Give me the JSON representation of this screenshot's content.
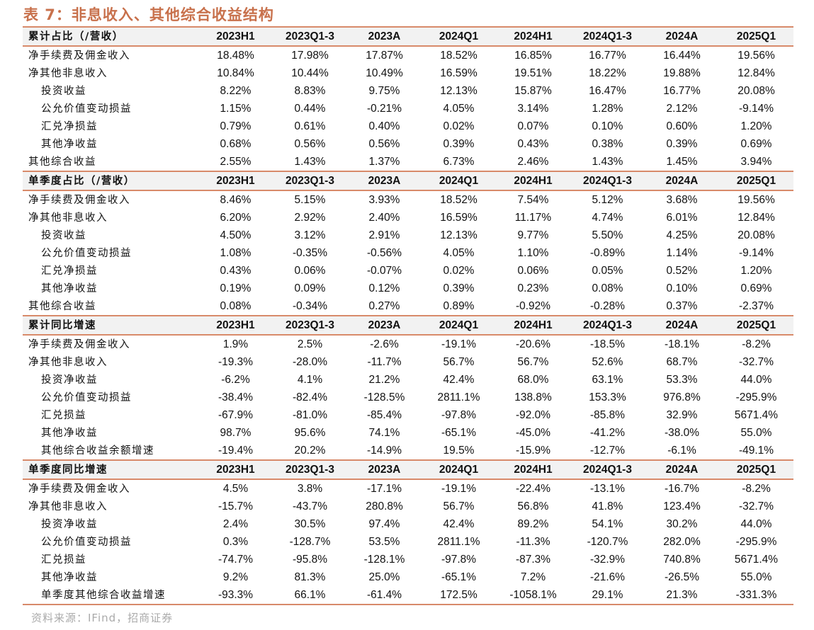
{
  "title": "表 7：非息收入、其他综合收益结构",
  "columns": [
    "2023H1",
    "2023Q1-3",
    "2023A",
    "2024Q1",
    "2024H1",
    "2024Q1-3",
    "2024A",
    "2025Q1"
  ],
  "accent_color": "#c8714c",
  "sections": [
    {
      "header": "累计占比（/营收）",
      "rows": [
        {
          "label": "净手续费及佣金收入",
          "indent": false,
          "values": [
            "18.48%",
            "17.98%",
            "17.87%",
            "18.52%",
            "16.85%",
            "16.77%",
            "16.44%",
            "19.56%"
          ]
        },
        {
          "label": "净其他非息收入",
          "indent": false,
          "values": [
            "10.84%",
            "10.44%",
            "10.49%",
            "16.59%",
            "19.51%",
            "18.22%",
            "19.88%",
            "12.84%"
          ]
        },
        {
          "label": "投资收益",
          "indent": true,
          "values": [
            "8.22%",
            "8.83%",
            "9.75%",
            "12.13%",
            "15.87%",
            "16.47%",
            "16.77%",
            "20.08%"
          ]
        },
        {
          "label": "公允价值变动损益",
          "indent": true,
          "values": [
            "1.15%",
            "0.44%",
            "-0.21%",
            "4.05%",
            "3.14%",
            "1.28%",
            "2.12%",
            "-9.14%"
          ]
        },
        {
          "label": "汇兑净损益",
          "indent": true,
          "values": [
            "0.79%",
            "0.61%",
            "0.40%",
            "0.02%",
            "0.07%",
            "0.10%",
            "0.60%",
            "1.20%"
          ]
        },
        {
          "label": "其他净收益",
          "indent": true,
          "values": [
            "0.68%",
            "0.56%",
            "0.56%",
            "0.39%",
            "0.43%",
            "0.38%",
            "0.39%",
            "0.69%"
          ]
        },
        {
          "label": "其他综合收益",
          "indent": false,
          "values": [
            "2.55%",
            "1.43%",
            "1.37%",
            "6.73%",
            "2.46%",
            "1.43%",
            "1.45%",
            "3.94%"
          ]
        }
      ]
    },
    {
      "header": "单季度占比（/营收）",
      "rows": [
        {
          "label": "净手续费及佣金收入",
          "indent": false,
          "values": [
            "8.46%",
            "5.15%",
            "3.93%",
            "18.52%",
            "7.54%",
            "5.12%",
            "3.68%",
            "19.56%"
          ]
        },
        {
          "label": "净其他非息收入",
          "indent": false,
          "values": [
            "6.20%",
            "2.92%",
            "2.40%",
            "16.59%",
            "11.17%",
            "4.74%",
            "6.01%",
            "12.84%"
          ]
        },
        {
          "label": "投资收益",
          "indent": true,
          "values": [
            "4.50%",
            "3.12%",
            "2.91%",
            "12.13%",
            "9.77%",
            "5.50%",
            "4.25%",
            "20.08%"
          ]
        },
        {
          "label": "公允价值变动损益",
          "indent": true,
          "values": [
            "1.08%",
            "-0.35%",
            "-0.56%",
            "4.05%",
            "1.10%",
            "-0.89%",
            "1.14%",
            "-9.14%"
          ]
        },
        {
          "label": "汇兑净损益",
          "indent": true,
          "values": [
            "0.43%",
            "0.06%",
            "-0.07%",
            "0.02%",
            "0.06%",
            "0.05%",
            "0.52%",
            "1.20%"
          ]
        },
        {
          "label": "其他净收益",
          "indent": true,
          "values": [
            "0.19%",
            "0.09%",
            "0.12%",
            "0.39%",
            "0.23%",
            "0.08%",
            "0.10%",
            "0.69%"
          ]
        },
        {
          "label": "其他综合收益",
          "indent": false,
          "values": [
            "0.08%",
            "-0.34%",
            "0.27%",
            "0.89%",
            "-0.92%",
            "-0.28%",
            "0.37%",
            "-2.37%"
          ]
        }
      ]
    },
    {
      "header": "累计同比增速",
      "rows": [
        {
          "label": "净手续费及佣金收入",
          "indent": false,
          "values": [
            "1.9%",
            "2.5%",
            "-2.6%",
            "-19.1%",
            "-20.6%",
            "-18.5%",
            "-18.1%",
            "-8.2%"
          ]
        },
        {
          "label": "净其他非息收入",
          "indent": false,
          "values": [
            "-19.3%",
            "-28.0%",
            "-11.7%",
            "56.7%",
            "56.7%",
            "52.6%",
            "68.7%",
            "-32.7%"
          ]
        },
        {
          "label": "投资净收益",
          "indent": true,
          "values": [
            "-6.2%",
            "4.1%",
            "21.2%",
            "42.4%",
            "68.0%",
            "63.1%",
            "53.3%",
            "44.0%"
          ]
        },
        {
          "label": "公允价值变动损益",
          "indent": true,
          "values": [
            "-38.4%",
            "-82.4%",
            "-128.5%",
            "2811.1%",
            "138.8%",
            "153.3%",
            "976.8%",
            "-295.9%"
          ]
        },
        {
          "label": "汇兑损益",
          "indent": true,
          "values": [
            "-67.9%",
            "-81.0%",
            "-85.4%",
            "-97.8%",
            "-92.0%",
            "-85.8%",
            "32.9%",
            "5671.4%"
          ]
        },
        {
          "label": "其他净收益",
          "indent": true,
          "values": [
            "98.7%",
            "95.6%",
            "74.1%",
            "-65.1%",
            "-45.0%",
            "-41.2%",
            "-38.0%",
            "55.0%"
          ]
        },
        {
          "label": "其他综合收益余额增速",
          "indent": true,
          "values": [
            "-19.4%",
            "20.2%",
            "-14.9%",
            "19.5%",
            "-15.9%",
            "-12.7%",
            "-6.1%",
            "-49.1%"
          ]
        }
      ]
    },
    {
      "header": "单季度同比增速",
      "rows": [
        {
          "label": "净手续费及佣金收入",
          "indent": false,
          "values": [
            "4.5%",
            "3.8%",
            "-17.1%",
            "-19.1%",
            "-22.4%",
            "-13.1%",
            "-16.7%",
            "-8.2%"
          ]
        },
        {
          "label": "净其他非息收入",
          "indent": false,
          "values": [
            "-15.7%",
            "-43.7%",
            "280.8%",
            "56.7%",
            "56.8%",
            "41.8%",
            "123.4%",
            "-32.7%"
          ]
        },
        {
          "label": "投资净收益",
          "indent": true,
          "values": [
            "2.4%",
            "30.5%",
            "97.4%",
            "42.4%",
            "89.2%",
            "54.1%",
            "30.2%",
            "44.0%"
          ]
        },
        {
          "label": "公允价值变动损益",
          "indent": true,
          "values": [
            "0.3%",
            "-128.7%",
            "53.5%",
            "2811.1%",
            "-11.3%",
            "-120.7%",
            "282.0%",
            "-295.9%"
          ]
        },
        {
          "label": "汇兑损益",
          "indent": true,
          "values": [
            "-74.7%",
            "-95.8%",
            "-128.1%",
            "-97.8%",
            "-87.3%",
            "-32.9%",
            "740.8%",
            "5671.4%"
          ]
        },
        {
          "label": "其他净收益",
          "indent": true,
          "values": [
            "9.2%",
            "81.3%",
            "25.0%",
            "-65.1%",
            "7.2%",
            "-21.6%",
            "-26.5%",
            "55.0%"
          ]
        },
        {
          "label": "单季度其他综合收益增速",
          "indent": true,
          "values": [
            "-93.3%",
            "66.1%",
            "-61.4%",
            "172.5%",
            "-1058.1%",
            "29.1%",
            "21.3%",
            "-331.3%"
          ]
        }
      ]
    }
  ],
  "source": "资料来源：IFind，招商证券"
}
